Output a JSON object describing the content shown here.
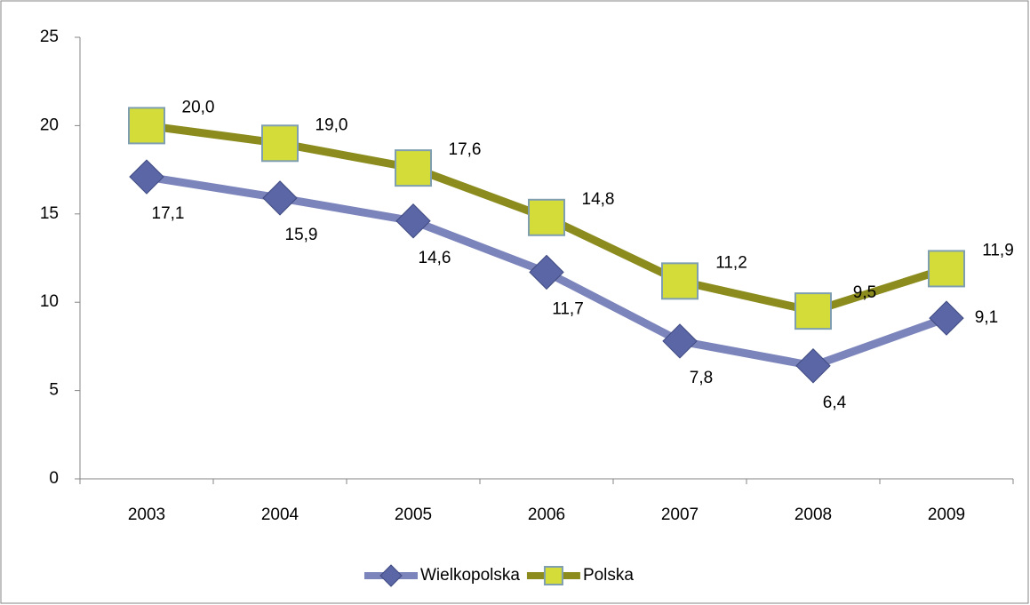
{
  "chart_data": {
    "type": "line",
    "categories": [
      "2003",
      "2004",
      "2005",
      "2006",
      "2007",
      "2008",
      "2009"
    ],
    "series": [
      {
        "name": "Wielkopolska",
        "color": "#7b84bb",
        "marker_color": "#5a66a6",
        "marker": "diamond",
        "values": [
          17.1,
          15.9,
          14.6,
          11.7,
          7.8,
          6.4,
          9.1
        ],
        "value_labels": [
          "17,1",
          "15,9",
          "14,6",
          "11,7",
          "7,8",
          "6,4",
          "9,1"
        ]
      },
      {
        "name": "Polska",
        "color": "#8c8c1e",
        "marker_color": "#d4dc3a",
        "marker": "square",
        "values": [
          20.0,
          19.0,
          17.6,
          14.8,
          11.2,
          9.5,
          11.9
        ],
        "value_labels": [
          "20,0",
          "19,0",
          "17,6",
          "14,8",
          "11,2",
          "9,5",
          "11,9"
        ]
      }
    ],
    "ylim": [
      0,
      25
    ],
    "yticks": [
      0,
      5,
      10,
      15,
      20,
      25
    ],
    "grid": false,
    "legend": "bottom"
  }
}
